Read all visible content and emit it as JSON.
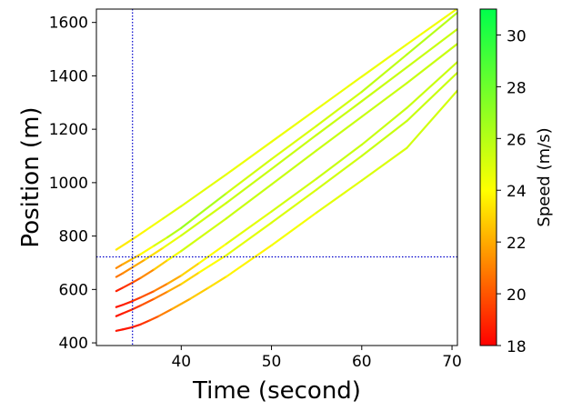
{
  "chart_data": {
    "type": "line",
    "title": "",
    "xlabel": "Time (second)",
    "ylabel": "Position (m)",
    "xlim": [
      30.6,
      70.6
    ],
    "ylim": [
      390,
      1650
    ],
    "xticks": [
      40,
      50,
      60,
      70
    ],
    "yticks": [
      400,
      600,
      800,
      1000,
      1200,
      1400,
      1600
    ],
    "grid": false,
    "legend": "none",
    "colorbar": {
      "label": "Speed (m/s)",
      "range": [
        18,
        31
      ],
      "ticks": [
        18,
        20,
        22,
        24,
        26,
        28,
        30
      ],
      "colors": [
        "#ff0000",
        "#ffff00",
        "#00ff4c"
      ]
    },
    "reference_lines": {
      "vertical_x": 34.6,
      "horizontal_y": 722,
      "color": "#0000cc"
    },
    "series": [
      {
        "x": [
          32.8,
          34,
          35,
          36,
          38,
          40,
          45,
          50,
          55,
          60,
          65,
          70.6
        ],
        "y": [
          749,
          775,
          797,
          820,
          866,
          912,
          1031,
          1153,
          1275,
          1397,
          1518,
          1652
        ],
        "speed": [
          23.5,
          23.5,
          23.5,
          24,
          24.5,
          25,
          24.5,
          24.5,
          24.5,
          24.5,
          24.5,
          24.2
        ]
      },
      {
        "x": [
          32.8,
          33.5,
          34.5,
          35.5,
          37,
          38.5,
          40,
          41,
          45,
          50,
          55,
          60,
          65,
          70.6
        ],
        "y": [
          680,
          694,
          713,
          732,
          764,
          796,
          830,
          856,
          960,
          1088,
          1213,
          1340,
          1480,
          1637
        ],
        "speed": [
          21,
          21.5,
          22.5,
          23.5,
          24.5,
          25.5,
          26.5,
          27,
          25.5,
          25,
          25,
          25.5,
          26,
          26
        ]
      },
      {
        "x": [
          32.8,
          33.5,
          34.5,
          36,
          38,
          40,
          45,
          50,
          55,
          60,
          65,
          70.6
        ],
        "y": [
          647,
          660,
          681,
          712,
          756,
          802,
          924,
          1051,
          1179,
          1305,
          1432,
          1575
        ],
        "speed": [
          20.5,
          21,
          21.5,
          22.5,
          24,
          25,
          25.5,
          25.5,
          25.5,
          25.5,
          25.5,
          25.5
        ]
      },
      {
        "x": [
          32.8,
          33.5,
          34.5,
          35.5,
          37,
          38.5,
          40,
          45,
          50,
          55,
          60,
          65,
          70.6
        ],
        "y": [
          594,
          606,
          624,
          643,
          675,
          710,
          744,
          866,
          993,
          1121,
          1247,
          1373,
          1520
        ],
        "speed": [
          18.5,
          19,
          19.5,
          20.5,
          22,
          23.5,
          25,
          25.5,
          25.5,
          25.5,
          25.5,
          25.5,
          25.5
        ]
      },
      {
        "x": [
          32.8,
          33.5,
          34.5,
          35.5,
          37,
          38.5,
          40,
          42,
          45,
          50,
          55,
          60,
          65,
          70.6
        ],
        "y": [
          534,
          542,
          555,
          570,
          594,
          622,
          652,
          699,
          771,
          892,
          1015,
          1142,
          1280,
          1452
        ],
        "speed": [
          18.5,
          18.5,
          19,
          19.5,
          20.5,
          21.5,
          22.5,
          23.5,
          24.5,
          25,
          25.5,
          25.5,
          25.5,
          25.5
        ]
      },
      {
        "x": [
          32.8,
          33.5,
          34.5,
          35.5,
          37,
          38.5,
          40,
          42,
          45,
          50,
          55,
          60,
          65,
          70.6
        ],
        "y": [
          500,
          510,
          524,
          540,
          565,
          592,
          620,
          664,
          728,
          850,
          974,
          1100,
          1231,
          1412
        ],
        "speed": [
          18.5,
          18.5,
          19,
          19.5,
          20.5,
          21.5,
          22.5,
          23.5,
          24.5,
          25,
          25,
          25.5,
          25.5,
          25.5
        ]
      },
      {
        "x": [
          32.8,
          33.5,
          34.5,
          35.5,
          36.5,
          37.5,
          39,
          41,
          43,
          45,
          50,
          55,
          60,
          65,
          70.6
        ],
        "y": [
          445,
          450,
          458,
          469,
          484,
          500,
          527,
          565,
          606,
          648,
          765,
          888,
          1008,
          1130,
          1345
        ],
        "speed": [
          18.5,
          18.5,
          18.5,
          19,
          19.5,
          20.5,
          21.5,
          22.5,
          23,
          23.5,
          24,
          24.5,
          25,
          25,
          25.5
        ]
      }
    ]
  }
}
